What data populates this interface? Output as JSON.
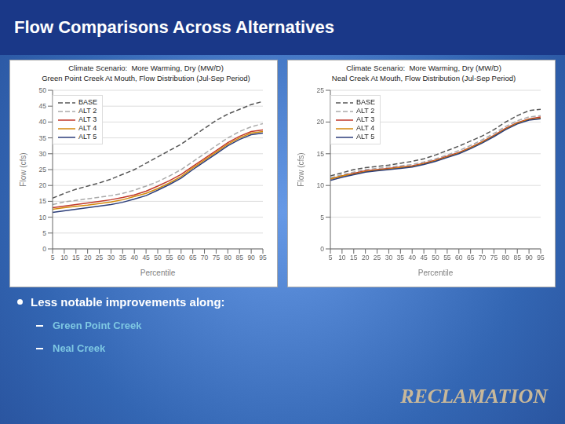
{
  "title": "Flow Comparisons Across Alternatives",
  "annotations": [
    "Less notable improvements along:",
    "Green Point Creek",
    "Neal Creek",
    "RECLAMATION"
  ],
  "chart_data": [
    {
      "type": "line",
      "title": "Climate Scenario:  More Warming, Dry (MW/D)",
      "subtitle": "Green Point Creek At Mouth, Flow Distribution (Jul-Sep Period)",
      "xlabel": "Percentile",
      "ylabel": "Flow (cfs)",
      "x": [
        5,
        10,
        15,
        20,
        25,
        30,
        35,
        40,
        45,
        50,
        55,
        60,
        65,
        70,
        75,
        80,
        85,
        90,
        95
      ],
      "xlim": [
        5,
        95
      ],
      "xticks": [
        5,
        10,
        15,
        20,
        25,
        30,
        35,
        40,
        45,
        50,
        55,
        60,
        65,
        70,
        75,
        80,
        85,
        90,
        95
      ],
      "ylim": [
        0,
        50
      ],
      "yticks": [
        0,
        5,
        10,
        15,
        20,
        25,
        30,
        35,
        40,
        45,
        50
      ],
      "grid": "y",
      "legend": "upper left",
      "series": [
        {
          "name": "BASE",
          "color": "#555555",
          "line_style": "dashed",
          "values": [
            16,
            17.5,
            18.8,
            19.8,
            20.8,
            22.0,
            23.5,
            25.0,
            27.0,
            29.0,
            31.0,
            33.0,
            35.5,
            38.0,
            40.5,
            42.5,
            44.0,
            45.5,
            46.5
          ]
        },
        {
          "name": "ALT 2",
          "color": "#aaaaaa",
          "line_style": "dashed",
          "values": [
            14.0,
            14.8,
            15.3,
            15.8,
            16.3,
            16.8,
            17.5,
            18.5,
            19.8,
            21.2,
            23.0,
            25.0,
            27.5,
            30.0,
            32.5,
            35.0,
            37.0,
            38.5,
            39.5
          ]
        },
        {
          "name": "ALT 3",
          "color": "#c0392b",
          "line_style": "solid",
          "values": [
            13.0,
            13.5,
            14.0,
            14.5,
            15.0,
            15.5,
            16.2,
            17.0,
            18.2,
            19.8,
            21.5,
            23.5,
            26.0,
            28.5,
            31.0,
            33.5,
            35.5,
            37.0,
            37.5
          ]
        },
        {
          "name": "ALT 4",
          "color": "#d4890a",
          "line_style": "solid",
          "values": [
            12.5,
            13.0,
            13.4,
            13.8,
            14.3,
            14.8,
            15.5,
            16.5,
            17.5,
            19.0,
            20.8,
            22.8,
            25.5,
            28.0,
            30.5,
            33.0,
            35.0,
            36.5,
            37.0
          ]
        },
        {
          "name": "ALT 5",
          "color": "#2c3e7a",
          "line_style": "solid",
          "values": [
            11.5,
            12.0,
            12.5,
            13.0,
            13.5,
            14.0,
            14.7,
            15.7,
            16.8,
            18.5,
            20.3,
            22.3,
            25.0,
            27.5,
            30.0,
            32.5,
            34.5,
            36.0,
            36.5
          ]
        }
      ]
    },
    {
      "type": "line",
      "title": "Climate Scenario:  More Warming, Dry (MW/D)",
      "subtitle": "Neal Creek At Mouth, Flow Distribution (Jul-Sep Period)",
      "xlabel": "Percentile",
      "ylabel": "Flow (cfs)",
      "x": [
        5,
        10,
        15,
        20,
        25,
        30,
        35,
        40,
        45,
        50,
        55,
        60,
        65,
        70,
        75,
        80,
        85,
        90,
        95
      ],
      "xlim": [
        5,
        95
      ],
      "xticks": [
        5,
        10,
        15,
        20,
        25,
        30,
        35,
        40,
        45,
        50,
        55,
        60,
        65,
        70,
        75,
        80,
        85,
        90,
        95
      ],
      "ylim": [
        0,
        25
      ],
      "yticks": [
        0,
        5,
        10,
        15,
        20,
        25
      ],
      "grid": "y",
      "legend": "upper left",
      "series": [
        {
          "name": "BASE",
          "color": "#555555",
          "line_style": "dashed",
          "values": [
            11.5,
            12.0,
            12.5,
            12.8,
            13.0,
            13.2,
            13.5,
            13.8,
            14.2,
            14.8,
            15.5,
            16.2,
            17.0,
            17.8,
            18.8,
            20.0,
            21.0,
            21.8,
            22.0
          ]
        },
        {
          "name": "ALT 2",
          "color": "#aaaaaa",
          "line_style": "dashed",
          "values": [
            11.2,
            11.7,
            12.1,
            12.5,
            12.7,
            12.9,
            13.1,
            13.3,
            13.7,
            14.2,
            14.8,
            15.5,
            16.3,
            17.2,
            18.2,
            19.3,
            20.2,
            20.8,
            21.0
          ]
        },
        {
          "name": "ALT 3",
          "color": "#c0392b",
          "line_style": "solid",
          "values": [
            11.0,
            11.5,
            11.9,
            12.3,
            12.5,
            12.7,
            12.9,
            13.1,
            13.5,
            14.0,
            14.6,
            15.2,
            16.0,
            16.9,
            17.9,
            19.0,
            19.9,
            20.5,
            20.8
          ]
        },
        {
          "name": "ALT 4",
          "color": "#d4890a",
          "line_style": "solid",
          "values": [
            11.0,
            11.5,
            11.8,
            12.2,
            12.4,
            12.6,
            12.8,
            13.0,
            13.4,
            13.9,
            14.5,
            15.1,
            15.9,
            16.8,
            17.8,
            18.9,
            19.8,
            20.4,
            20.6
          ]
        },
        {
          "name": "ALT 5",
          "color": "#2c3e7a",
          "line_style": "solid",
          "values": [
            10.8,
            11.3,
            11.7,
            12.1,
            12.3,
            12.5,
            12.7,
            12.9,
            13.3,
            13.8,
            14.4,
            15.0,
            15.8,
            16.7,
            17.7,
            18.8,
            19.7,
            20.3,
            20.5
          ]
        }
      ]
    }
  ]
}
